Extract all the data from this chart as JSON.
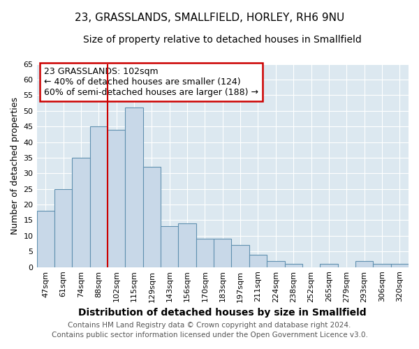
{
  "title": "23, GRASSLANDS, SMALLFIELD, HORLEY, RH6 9NU",
  "subtitle": "Size of property relative to detached houses in Smallfield",
  "xlabel": "Distribution of detached houses by size in Smallfield",
  "ylabel": "Number of detached properties",
  "footer_line1": "Contains HM Land Registry data © Crown copyright and database right 2024.",
  "footer_line2": "Contains public sector information licensed under the Open Government Licence v3.0.",
  "annotation_line1": "23 GRASSLANDS: 102sqm",
  "annotation_line2": "← 40% of detached houses are smaller (124)",
  "annotation_line3": "60% of semi-detached houses are larger (188) →",
  "bar_labels": [
    "47sqm",
    "61sqm",
    "74sqm",
    "88sqm",
    "102sqm",
    "115sqm",
    "129sqm",
    "143sqm",
    "156sqm",
    "170sqm",
    "183sqm",
    "197sqm",
    "211sqm",
    "224sqm",
    "238sqm",
    "252sqm",
    "265sqm",
    "279sqm",
    "293sqm",
    "306sqm",
    "320sqm"
  ],
  "bar_values": [
    18,
    25,
    35,
    45,
    44,
    51,
    32,
    13,
    14,
    9,
    9,
    7,
    4,
    2,
    1,
    0,
    1,
    0,
    2,
    1,
    1
  ],
  "bar_color": "#c8d8e8",
  "bar_edge_color": "#6090b0",
  "highlight_bar_index": 4,
  "highlight_line_color": "#cc0000",
  "annotation_box_edge_color": "#cc0000",
  "background_color": "#ffffff",
  "plot_background_color": "#dce8f0",
  "grid_color": "#ffffff",
  "ylim": [
    0,
    65
  ],
  "yticks": [
    0,
    5,
    10,
    15,
    20,
    25,
    30,
    35,
    40,
    45,
    50,
    55,
    60,
    65
  ],
  "title_fontsize": 11,
  "subtitle_fontsize": 10,
  "xlabel_fontsize": 10,
  "ylabel_fontsize": 9,
  "tick_fontsize": 8,
  "annotation_fontsize": 9,
  "footer_fontsize": 7.5
}
